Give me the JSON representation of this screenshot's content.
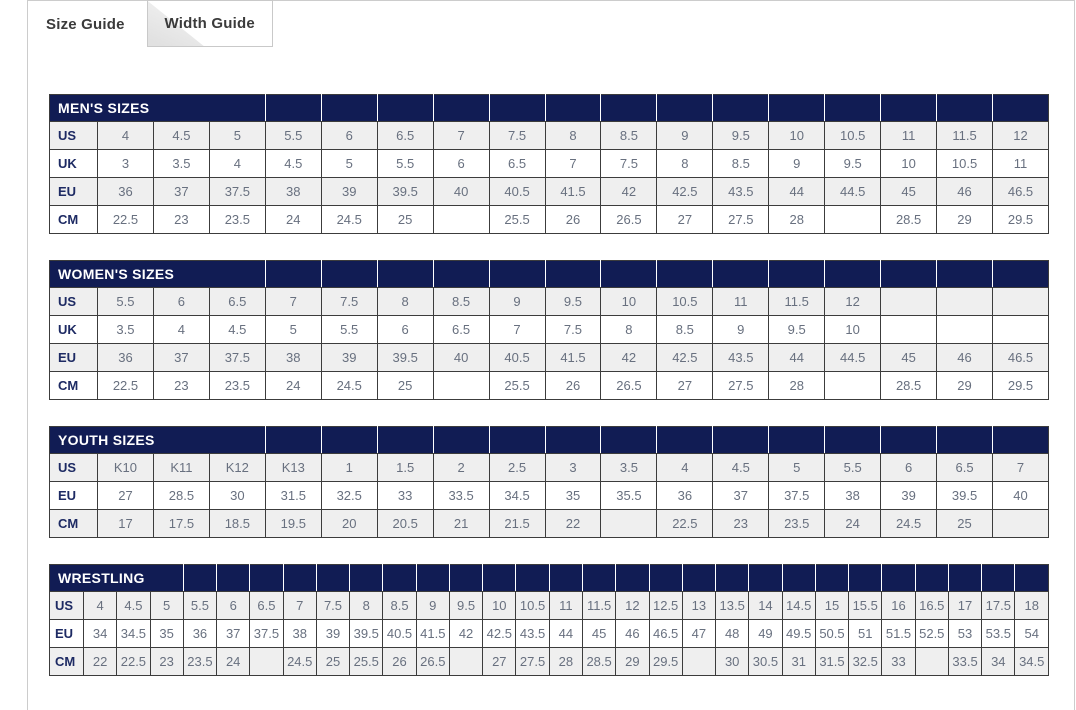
{
  "tabs": [
    {
      "label": "Size Guide",
      "active": true
    },
    {
      "label": "Width Guide",
      "active": false
    }
  ],
  "colors": {
    "navy": "#111c54",
    "headerText": "#ffffff",
    "labelText": "#1d2a63",
    "cellText": "#68707f",
    "stripe": "#efefef",
    "rowWhite": "#ffffff",
    "borderDark": "#3c3c3c",
    "lineGray": "#cccccc",
    "tabText": "#3b3b3b",
    "foldGray": "#e5e5e5"
  },
  "tables": [
    {
      "id": "mens-sizes",
      "title": "MEN'S SIZES",
      "title_colspan": 4,
      "columns": 17,
      "label_col_width": 48,
      "compact": false,
      "rows": [
        {
          "label": "US",
          "values": [
            "4",
            "4.5",
            "5",
            "5.5",
            "6",
            "6.5",
            "7",
            "7.5",
            "8",
            "8.5",
            "9",
            "9.5",
            "10",
            "10.5",
            "11",
            "11.5",
            "12"
          ]
        },
        {
          "label": "UK",
          "values": [
            "3",
            "3.5",
            "4",
            "4.5",
            "5",
            "5.5",
            "6",
            "6.5",
            "7",
            "7.5",
            "8",
            "8.5",
            "9",
            "9.5",
            "10",
            "10.5",
            "11"
          ]
        },
        {
          "label": "EU",
          "values": [
            "36",
            "37",
            "37.5",
            "38",
            "39",
            "39.5",
            "40",
            "40.5",
            "41.5",
            "42",
            "42.5",
            "43.5",
            "44",
            "44.5",
            "45",
            "46",
            "46.5"
          ]
        },
        {
          "label": "CM",
          "values": [
            "22.5",
            "23",
            "23.5",
            "24",
            "24.5",
            "25",
            "",
            "25.5",
            "26",
            "26.5",
            "27",
            "27.5",
            "28",
            "",
            "28.5",
            "29",
            "29.5"
          ]
        }
      ]
    },
    {
      "id": "womens-sizes",
      "title": "WOMEN'S SIZES",
      "title_colspan": 4,
      "columns": 17,
      "label_col_width": 48,
      "compact": false,
      "rows": [
        {
          "label": "US",
          "values": [
            "5.5",
            "6",
            "6.5",
            "7",
            "7.5",
            "8",
            "8.5",
            "9",
            "9.5",
            "10",
            "10.5",
            "11",
            "11.5",
            "12",
            "",
            "",
            ""
          ]
        },
        {
          "label": "UK",
          "values": [
            "3.5",
            "4",
            "4.5",
            "5",
            "5.5",
            "6",
            "6.5",
            "7",
            "7.5",
            "8",
            "8.5",
            "9",
            "9.5",
            "10",
            "",
            "",
            ""
          ]
        },
        {
          "label": "EU",
          "values": [
            "36",
            "37",
            "37.5",
            "38",
            "39",
            "39.5",
            "40",
            "40.5",
            "41.5",
            "42",
            "42.5",
            "43.5",
            "44",
            "44.5",
            "45",
            "46",
            "46.5"
          ]
        },
        {
          "label": "CM",
          "values": [
            "22.5",
            "23",
            "23.5",
            "24",
            "24.5",
            "25",
            "",
            "25.5",
            "26",
            "26.5",
            "27",
            "27.5",
            "28",
            "",
            "28.5",
            "29",
            "29.5"
          ]
        }
      ]
    },
    {
      "id": "youth-sizes",
      "title": "YOUTH SIZES",
      "title_colspan": 4,
      "columns": 17,
      "label_col_width": 48,
      "compact": false,
      "rows": [
        {
          "label": "US",
          "values": [
            "K10",
            "K11",
            "K12",
            "K13",
            "1",
            "1.5",
            "2",
            "2.5",
            "3",
            "3.5",
            "4",
            "4.5",
            "5",
            "5.5",
            "6",
            "6.5",
            "7"
          ]
        },
        {
          "label": "EU",
          "values": [
            "27",
            "28.5",
            "30",
            "31.5",
            "32.5",
            "33",
            "33.5",
            "34.5",
            "35",
            "35.5",
            "36",
            "37",
            "37.5",
            "38",
            "39",
            "39.5",
            "40"
          ]
        },
        {
          "label": "CM",
          "values": [
            "17",
            "17.5",
            "18.5",
            "19.5",
            "20",
            "20.5",
            "21",
            "21.5",
            "22",
            "",
            "22.5",
            "23",
            "23.5",
            "24",
            "24.5",
            "25",
            ""
          ]
        }
      ]
    },
    {
      "id": "wrestling",
      "title": "WRESTLING",
      "title_colspan": 4,
      "columns": 29,
      "label_col_width": 34,
      "compact": true,
      "rows": [
        {
          "label": "US",
          "values": [
            "4",
            "4.5",
            "5",
            "5.5",
            "6",
            "6.5",
            "7",
            "7.5",
            "8",
            "8.5",
            "9",
            "9.5",
            "10",
            "10.5",
            "11",
            "11.5",
            "12",
            "12.5",
            "13",
            "13.5",
            "14",
            "14.5",
            "15",
            "15.5",
            "16",
            "16.5",
            "17",
            "17.5",
            "18"
          ]
        },
        {
          "label": "EU",
          "values": [
            "34",
            "34.5",
            "35",
            "36",
            "37",
            "37.5",
            "38",
            "39",
            "39.5",
            "40.5",
            "41.5",
            "42",
            "42.5",
            "43.5",
            "44",
            "45",
            "46",
            "46.5",
            "47",
            "48",
            "49",
            "49.5",
            "50.5",
            "51",
            "51.5",
            "52.5",
            "53",
            "53.5",
            "54"
          ]
        },
        {
          "label": "CM",
          "values": [
            "22",
            "22.5",
            "23",
            "23.5",
            "24",
            "",
            "24.5",
            "25",
            "25.5",
            "26",
            "26.5",
            "",
            "27",
            "27.5",
            "28",
            "28.5",
            "29",
            "29.5",
            "",
            "30",
            "30.5",
            "31",
            "31.5",
            "32.5",
            "33",
            "",
            "33.5",
            "34",
            "34.5"
          ]
        }
      ]
    }
  ]
}
